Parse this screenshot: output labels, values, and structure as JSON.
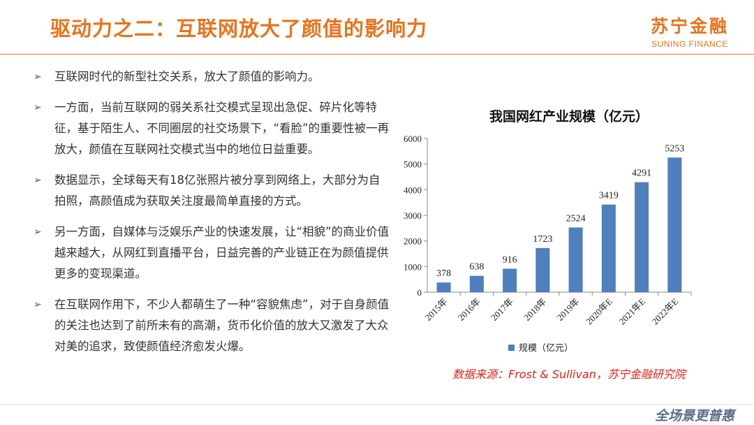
{
  "header": {
    "title": "驱动力之二：互联网放大了颜值的影响力",
    "logo_cn": "苏宁金融",
    "logo_en": "SUNING FINANCE"
  },
  "bullets": [
    "互联网时代的新型社交关系，放大了颜值的影响力。",
    "一方面，当前互联网的弱关系社交模式呈现出急促、碎片化等特征，基于陌生人、不同圈层的社交场景下，“看脸”的重要性被一再放大，颜值在互联网社交模式当中的地位日益重要。",
    "数据显示，全球每天有18亿张照片被分享到网络上，大部分为自拍照，高颜值成为获取关注度最简单直接的方式。",
    "另一方面，自媒体与泛娱乐产业的快速发展，让“相貌”的商业价值越来越大，从网红到直播平台，日益完善的产业链正在为颜值提供更多的变现渠道。",
    "在互联网作用下，不少人都萌生了一种“容貌焦虑”，对于自身颜值的关注也达到了前所未有的高潮，货币化价值的放大又激发了大众对美的追求，致使颜值经济愈发火爆。"
  ],
  "chart_data": {
    "type": "bar",
    "title": "我国网红产业规模（亿元）",
    "categories": [
      "2015年",
      "2016年",
      "2017年",
      "2018年",
      "2019年",
      "2020年E",
      "2021年E",
      "2022年E"
    ],
    "series": [
      {
        "name": "规模（亿元）",
        "values": [
          378,
          638,
          916,
          1723,
          2524,
          3419,
          4291,
          5253
        ]
      }
    ],
    "ylim": [
      0,
      6000
    ],
    "yticks": [
      0,
      1000,
      2000,
      3000,
      4000,
      5000,
      6000
    ],
    "grid": false,
    "legend": "bottom",
    "bar_color": "#4f7fbc"
  },
  "source": "数据来源：Frost & Sullivan，苏宁金融研究院",
  "footer": {
    "brand": "全场景更普惠"
  },
  "colors": {
    "accent": "#e8731d",
    "source_red": "#e2231a"
  }
}
